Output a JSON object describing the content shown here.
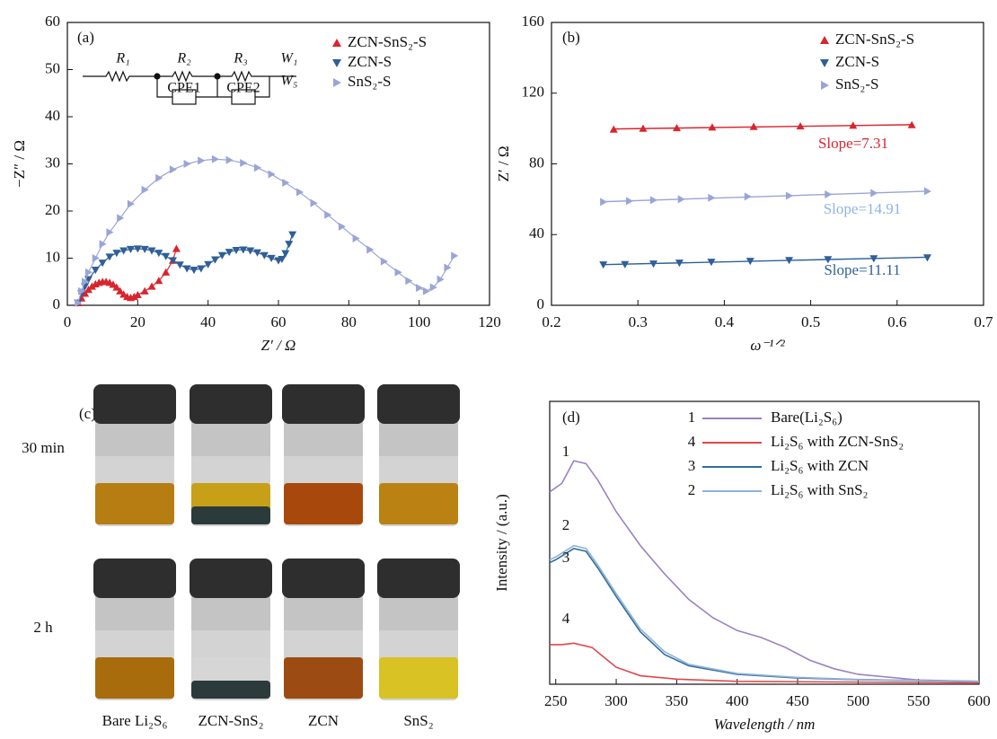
{
  "chart_data": [
    {
      "type": "scatter",
      "panel_label": "(a)",
      "x_label": "Z′ / Ω",
      "y_label": "−Z″ / Ω",
      "xlim": [
        0,
        120
      ],
      "xticks": [
        0,
        20,
        40,
        60,
        80,
        100,
        120
      ],
      "ylim": [
        0,
        60
      ],
      "yticks": [
        0,
        10,
        20,
        30,
        40,
        50,
        60
      ],
      "connect": true,
      "legend": "upper right",
      "circuit_labels": [
        "R₁",
        "R₂",
        "R₃",
        "CPE1",
        "CPE2",
        "W₁",
        "W₅"
      ],
      "series": [
        {
          "name": "ZCN-SnS₂-S",
          "color": "#d9252e",
          "marker": "triangle-up",
          "x": [
            3,
            4,
            5,
            6,
            7,
            8,
            9,
            10,
            11,
            12,
            13,
            14,
            15,
            16,
            17,
            18,
            19,
            20,
            22,
            24,
            26,
            28,
            30,
            31
          ],
          "values": [
            0.5,
            1.5,
            2.5,
            3.3,
            4,
            4.5,
            4.8,
            5,
            5,
            4.8,
            4.4,
            3.8,
            3,
            2.3,
            1.8,
            1.6,
            1.8,
            2.2,
            3,
            4,
            5.2,
            7,
            9.5,
            12
          ]
        },
        {
          "name": "ZCN-S",
          "color": "#2f5f98",
          "marker": "triangle-down",
          "x": [
            3,
            4,
            5,
            6,
            8,
            10,
            12,
            14,
            16,
            18,
            20,
            22,
            24,
            26,
            28,
            30,
            32,
            34,
            36,
            38,
            40,
            42,
            44,
            46,
            48,
            50,
            52,
            54,
            56,
            58,
            60,
            61,
            62,
            63,
            64
          ],
          "values": [
            0.5,
            2.5,
            4,
            5.5,
            7.5,
            9,
            10.3,
            11.1,
            11.6,
            11.9,
            12,
            11.9,
            11.6,
            11.1,
            10.4,
            9.5,
            8.6,
            7.8,
            7.5,
            7.8,
            8.7,
            9.7,
            10.6,
            11.3,
            11.7,
            11.8,
            11.6,
            11.2,
            10.6,
            10,
            9.5,
            9.8,
            11,
            13,
            15
          ]
        },
        {
          "name": "SnS₂-S",
          "color": "#9aa5d6",
          "marker": "triangle-right",
          "x": [
            3,
            4,
            5,
            6,
            8,
            10,
            12,
            15,
            18,
            22,
            26,
            30,
            34,
            38,
            42,
            46,
            50,
            54,
            58,
            62,
            66,
            70,
            74,
            78,
            82,
            86,
            90,
            94,
            97,
            100,
            102,
            104,
            106,
            108,
            110
          ],
          "values": [
            0.5,
            3,
            5,
            7,
            10,
            13,
            15.5,
            18.5,
            21.5,
            24.5,
            27,
            28.8,
            30,
            30.7,
            31,
            30.8,
            30.2,
            29.2,
            27.8,
            26,
            24,
            21.7,
            19.2,
            16.7,
            14.2,
            11.8,
            9.3,
            7,
            5.2,
            3.7,
            3,
            3.8,
            5.5,
            8,
            10.5
          ]
        }
      ]
    },
    {
      "type": "scatter",
      "panel_label": "(b)",
      "x_label": "ω⁻¹ᐟ²",
      "y_label": "Z′ / Ω",
      "xlim": [
        0.2,
        0.7
      ],
      "xticks": [
        0.2,
        0.3,
        0.4,
        0.5,
        0.6,
        0.7
      ],
      "ylim": [
        0,
        160
      ],
      "yticks": [
        0,
        40,
        80,
        120,
        160
      ],
      "fit": true,
      "legend": "upper right",
      "series": [
        {
          "name": "ZCN-SnS₂-S",
          "color": "#d9252e",
          "marker": "triangle-up",
          "annotation": "Slope=7.31",
          "annotation_color": "#d9252e",
          "x": [
            0.272,
            0.306,
            0.345,
            0.386,
            0.434,
            0.488,
            0.549,
            0.617
          ],
          "values": [
            99.5,
            100,
            100.3,
            100.7,
            101,
            101.3,
            101.7,
            102
          ]
        },
        {
          "name": "ZCN-S",
          "color": "#2f5f98",
          "marker": "triangle-down",
          "annotation": "Slope=11.11",
          "annotation_color": "#2f5f98",
          "x": [
            0.26,
            0.285,
            0.318,
            0.348,
            0.385,
            0.43,
            0.475,
            0.52,
            0.573,
            0.635
          ],
          "values": [
            23,
            23.2,
            23.5,
            24,
            24.5,
            25,
            25.5,
            26,
            26.5,
            27
          ]
        },
        {
          "name": "SnS₂-S",
          "color": "#9aa5d6",
          "marker": "triangle-right",
          "annotation": "Slope=14.91",
          "annotation_color": "#8fb4e3",
          "x": [
            0.26,
            0.29,
            0.318,
            0.35,
            0.385,
            0.427,
            0.475,
            0.52,
            0.573,
            0.635
          ],
          "values": [
            58.5,
            59,
            59.5,
            60,
            60.8,
            61.5,
            62,
            62.7,
            63.5,
            64.5
          ]
        }
      ]
    },
    {
      "type": "line",
      "panel_label": "(d)",
      "x_label": "Wavelength / nm",
      "y_label": "Intensity / (a.u.)",
      "xlim": [
        245,
        600
      ],
      "xticks": [
        250,
        300,
        350,
        400,
        450,
        500,
        550,
        600
      ],
      "ylim": [
        0,
        100
      ],
      "legend": "upper right",
      "series": [
        {
          "number": "1",
          "name": "Bare(Li₂S₆)",
          "color": "#9a82c0",
          "x": [
            245,
            255,
            265,
            275,
            285,
            300,
            320,
            340,
            360,
            380,
            400,
            420,
            440,
            460,
            480,
            500,
            550,
            600
          ],
          "values": [
            68,
            71,
            79,
            78,
            72,
            61,
            49,
            39,
            30,
            23.5,
            19,
            16.5,
            13,
            8.5,
            5.5,
            3.5,
            1.5,
            1
          ]
        },
        {
          "number": "4",
          "name": "Li₂S₆ with ZCN-SnS₂",
          "color": "#e0474c",
          "x": [
            245,
            255,
            265,
            280,
            290,
            300,
            320,
            350,
            400,
            600
          ],
          "values": [
            14,
            14,
            14.5,
            13,
            9.5,
            6,
            3,
            1.8,
            1,
            0.5
          ]
        },
        {
          "number": "3",
          "name": "Li₂S₆ with ZCN",
          "color": "#2f6f9c",
          "x": [
            245,
            250,
            265,
            275,
            285,
            300,
            320,
            340,
            360,
            400,
            450,
            500,
            600
          ],
          "values": [
            43,
            44,
            48,
            47,
            41,
            31,
            18.5,
            10.5,
            6.5,
            3.5,
            2.2,
            1.6,
            1
          ]
        },
        {
          "number": "2",
          "name": "Li₂S₆ with SnS₂",
          "color": "#8fb1d9",
          "x": [
            245,
            250,
            265,
            275,
            285,
            300,
            320,
            340,
            360,
            400,
            450,
            500,
            600
          ],
          "values": [
            44,
            45,
            49,
            48,
            42,
            32,
            19.5,
            11.5,
            7,
            3.8,
            2.4,
            1.7,
            1
          ]
        }
      ]
    }
  ],
  "photo_panel": {
    "panel_label": "(c)",
    "rows": [
      "30 min",
      "2 h"
    ],
    "samples": [
      "Bare Li₂S₆",
      "ZCN-SnS₂",
      "ZCN",
      "SnS₂"
    ]
  }
}
